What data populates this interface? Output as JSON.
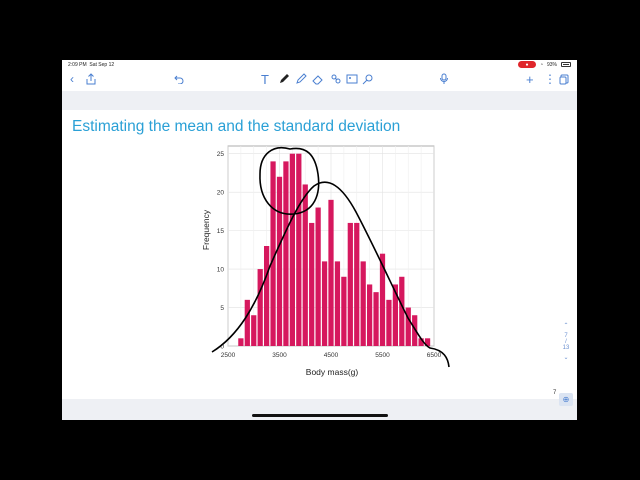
{
  "status_bar": {
    "time": "2:09 PM",
    "date": "Sat Sep 12",
    "battery": "93%"
  },
  "toolbar": {
    "left_icons": [
      "back-chevron-icon",
      "share-icon",
      "undo-icon"
    ],
    "tool_icons": [
      "text-tool-icon",
      "pen-tool-icon",
      "highlighter-icon",
      "eraser-icon",
      "lasso-icon",
      "image-icon",
      "laser-pointer-icon"
    ],
    "right_icons": [
      "microphone-icon",
      "add-icon",
      "more-icon",
      "pages-icon"
    ]
  },
  "slide": {
    "title": "Estimating the mean and the standard deviation"
  },
  "chart_data": {
    "type": "bar",
    "xlabel": "Body mass(g)",
    "ylabel": "Frequency",
    "xlim": [
      2500,
      6500
    ],
    "ylim": [
      0,
      26
    ],
    "x_ticks": [
      2500,
      3500,
      4500,
      5500,
      6500
    ],
    "y_ticks": [
      0,
      5,
      10,
      15,
      20,
      25
    ],
    "grid": true,
    "bin_width": 125,
    "bins": [
      {
        "x": 2750,
        "count": 1
      },
      {
        "x": 2875,
        "count": 6
      },
      {
        "x": 3000,
        "count": 4
      },
      {
        "x": 3125,
        "count": 10
      },
      {
        "x": 3250,
        "count": 13
      },
      {
        "x": 3375,
        "count": 24
      },
      {
        "x": 3500,
        "count": 22
      },
      {
        "x": 3625,
        "count": 24
      },
      {
        "x": 3750,
        "count": 25
      },
      {
        "x": 3875,
        "count": 25
      },
      {
        "x": 4000,
        "count": 21
      },
      {
        "x": 4125,
        "count": 16
      },
      {
        "x": 4250,
        "count": 18
      },
      {
        "x": 4375,
        "count": 11
      },
      {
        "x": 4500,
        "count": 19
      },
      {
        "x": 4625,
        "count": 11
      },
      {
        "x": 4750,
        "count": 9
      },
      {
        "x": 4875,
        "count": 16
      },
      {
        "x": 5000,
        "count": 16
      },
      {
        "x": 5125,
        "count": 11
      },
      {
        "x": 5250,
        "count": 8
      },
      {
        "x": 5375,
        "count": 7
      },
      {
        "x": 5500,
        "count": 12
      },
      {
        "x": 5625,
        "count": 6
      },
      {
        "x": 5750,
        "count": 8
      },
      {
        "x": 5875,
        "count": 9
      },
      {
        "x": 6000,
        "count": 5
      },
      {
        "x": 6125,
        "count": 4
      },
      {
        "x": 6250,
        "count": 1
      },
      {
        "x": 6375,
        "count": 1
      }
    ],
    "bar_color": "#d6185e"
  },
  "pager": {
    "current": "7",
    "total": "13"
  },
  "bottom": {
    "page_number": "7"
  }
}
